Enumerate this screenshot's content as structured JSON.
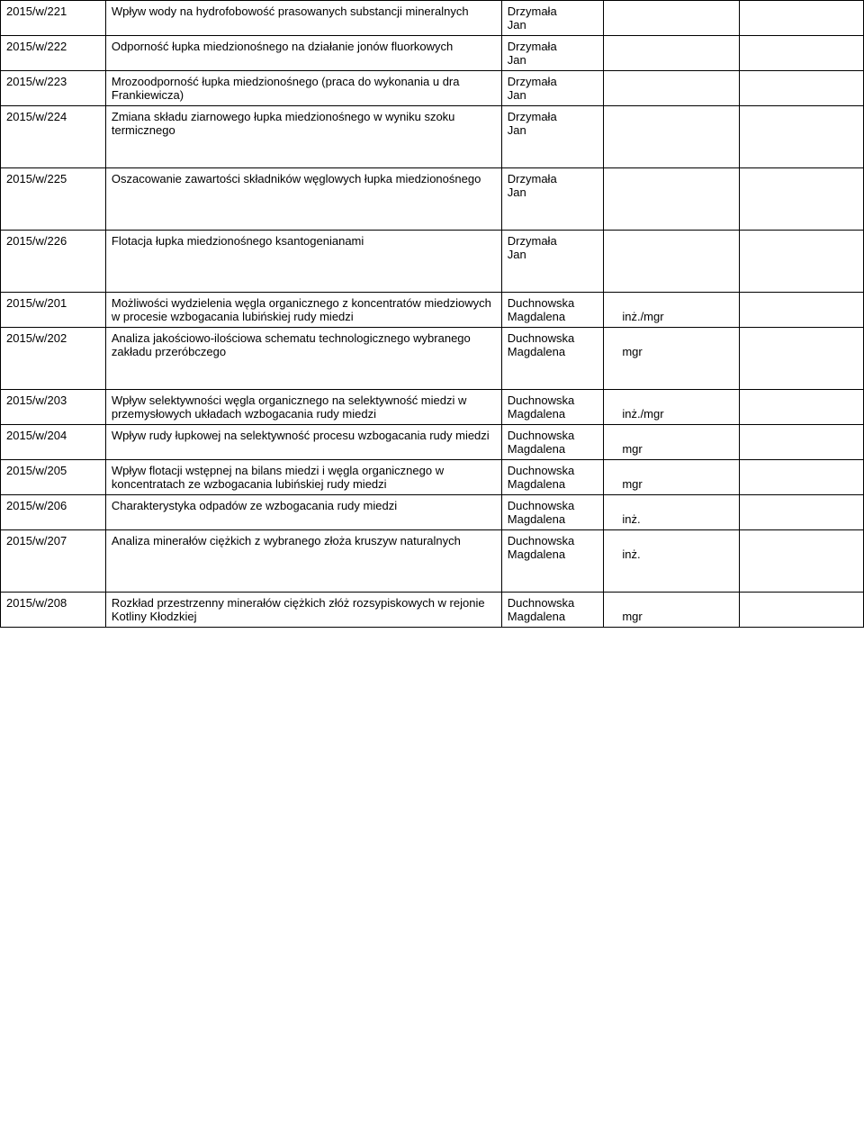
{
  "rows": [
    {
      "id": "2015/w/221",
      "title": "Wpływ wody na hydrofobowość prasowanych substancji mineralnych",
      "author1": "Drzymała",
      "author2": "Jan",
      "degree": ""
    },
    {
      "id": "2015/w/222",
      "title": "Odporność łupka miedzionośnego na działanie jonów fluorkowych",
      "author1": "Drzymała",
      "author2": "Jan",
      "degree": ""
    },
    {
      "id": "2015/w/223",
      "title": "Mrozoodporność łupka miedzionośnego (praca do wykonania u dra Frankiewicza)",
      "author1": "Drzymała",
      "author2": "Jan",
      "degree": ""
    },
    {
      "id": "2015/w/224",
      "title": "Zmiana składu ziarnowego łupka miedzionośnego w wyniku szoku termicznego",
      "author1": "Drzymała",
      "author2": "Jan",
      "degree": ""
    },
    {
      "id": "2015/w/225",
      "title": "Oszacowanie zawartości składników węglowych łupka miedzionośnego",
      "author1": "Drzymała",
      "author2": "Jan",
      "degree": ""
    },
    {
      "id": "2015/w/226",
      "title": "Flotacja łupka miedzionośnego ksantogenianami",
      "author1": "Drzymała",
      "author2": "Jan",
      "degree": ""
    },
    {
      "id": "2015/w/201",
      "title": "Możliwości wydzielenia węgla organicznego z koncentratów miedziowych w procesie wzbogacania lubińskiej rudy miedzi",
      "author1": "Duchnowska",
      "author2": "Magdalena",
      "degree": "inż./mgr"
    },
    {
      "id": "2015/w/202",
      "title": "Analiza jakościowo-ilościowa schematu technologicznego wybranego zakładu przeróbczego",
      "author1": "Duchnowska",
      "author2": "Magdalena",
      "degree": "mgr"
    },
    {
      "id": "2015/w/203",
      "title": "Wpływ selektywności węgla organicznego na selektywność miedzi w przemysłowych układach wzbogacania rudy miedzi",
      "author1": "Duchnowska",
      "author2": "Magdalena",
      "degree": "inż./mgr"
    },
    {
      "id": "2015/w/204",
      "title": "Wpływ rudy łupkowej na selektywność procesu wzbogacania rudy miedzi",
      "author1": "Duchnowska",
      "author2": "Magdalena",
      "degree": "mgr"
    },
    {
      "id": "2015/w/205",
      "title": "Wpływ flotacji wstępnej na bilans miedzi i węgla organicznego w koncentratach ze wzbogacania lubińskiej rudy miedzi",
      "author1": "Duchnowska",
      "author2": "Magdalena",
      "degree": "mgr"
    },
    {
      "id": "2015/w/206",
      "title": "Charakterystyka odpadów ze wzbogacania rudy miedzi",
      "author1": "Duchnowska",
      "author2": "Magdalena",
      "degree": "inż."
    },
    {
      "id": "2015/w/207",
      "title": "Analiza minerałów ciężkich z wybranego złoża kruszyw naturalnych",
      "author1": "Duchnowska",
      "author2": "Magdalena",
      "degree": "inż."
    },
    {
      "id": "2015/w/208",
      "title": "Rozkład przestrzenny minerałów ciężkich złóż rozsypiskowych w rejonie Kotliny Kłodzkiej",
      "author1": "Duchnowska",
      "author2": "Magdalena",
      "degree": "mgr"
    }
  ],
  "gaps_after": [
    3,
    4,
    5,
    7,
    12
  ]
}
